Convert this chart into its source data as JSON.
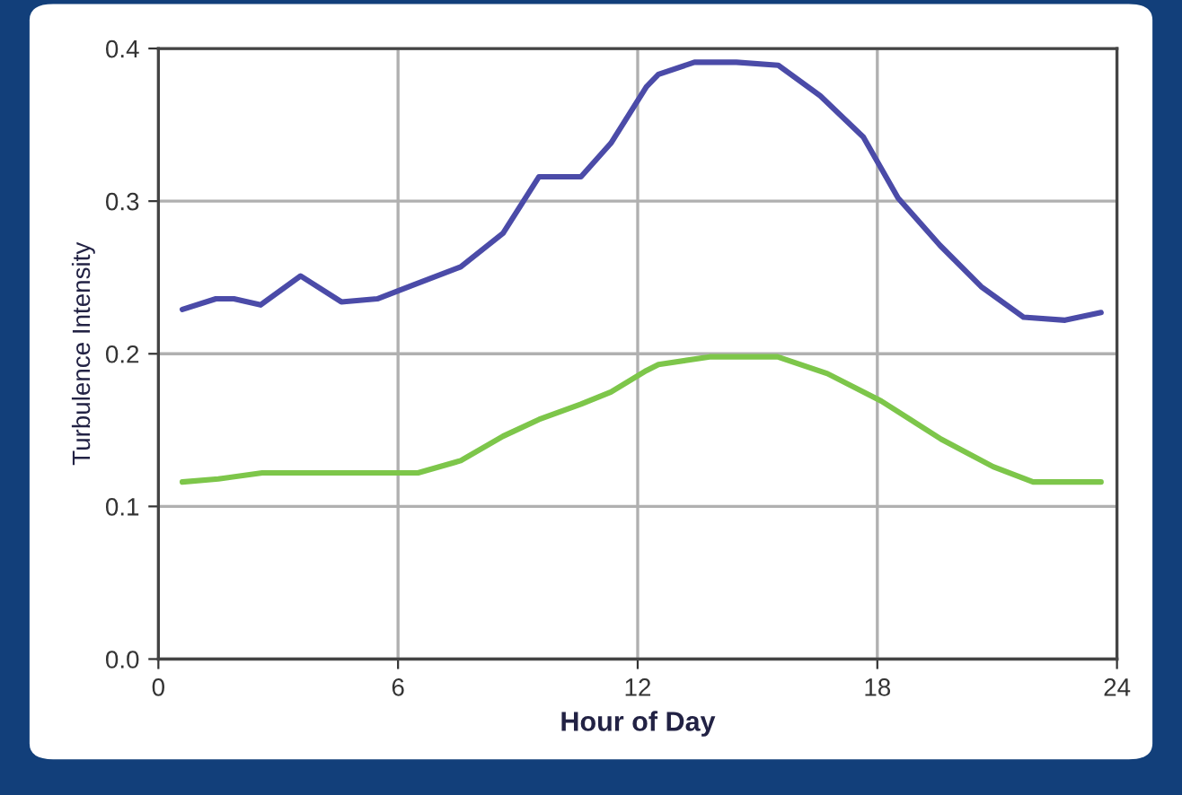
{
  "chart_data": {
    "type": "line",
    "xlabel": "Hour of Day",
    "ylabel": "Turbulence Intensity",
    "xlim": [
      0,
      24
    ],
    "xticks": [
      0,
      6,
      12,
      18,
      24
    ],
    "ylim": [
      0,
      0.4
    ],
    "yticks": [
      {
        "value": 0,
        "label": "0.0"
      },
      0.1,
      0.2,
      0.3,
      0.4
    ],
    "grid": true,
    "series": [
      {
        "color": "#4b4ba8",
        "x": [
          0.6,
          1.44,
          1.89,
          2.56,
          3.56,
          4.58,
          5.48,
          6.38,
          7.57,
          8.63,
          9.53,
          10.58,
          11.33,
          12.22,
          12.52,
          13.42,
          14.47,
          15.52,
          16.57,
          17.65,
          18.52,
          19.57,
          20.6,
          21.66,
          22.7,
          23.6
        ],
        "values": [
          0.229,
          0.236,
          0.236,
          0.232,
          0.251,
          0.234,
          0.236,
          0.245,
          0.257,
          0.279,
          0.316,
          0.316,
          0.338,
          0.375,
          0.383,
          0.391,
          0.391,
          0.389,
          0.369,
          0.342,
          0.302,
          0.271,
          0.244,
          0.224,
          0.222,
          0.227
        ]
      },
      {
        "color": "#7dc64a",
        "x": [
          0.6,
          1.5,
          2.6,
          6.5,
          7.57,
          8.63,
          9.53,
          10.58,
          11.33,
          12.22,
          12.52,
          13.8,
          15.5,
          16.75,
          18.1,
          19.6,
          20.9,
          21.9,
          23.6
        ],
        "values": [
          0.116,
          0.118,
          0.122,
          0.122,
          0.13,
          0.146,
          0.157,
          0.167,
          0.175,
          0.189,
          0.193,
          0.198,
          0.198,
          0.187,
          0.169,
          0.144,
          0.126,
          0.116,
          0.116
        ]
      }
    ]
  }
}
